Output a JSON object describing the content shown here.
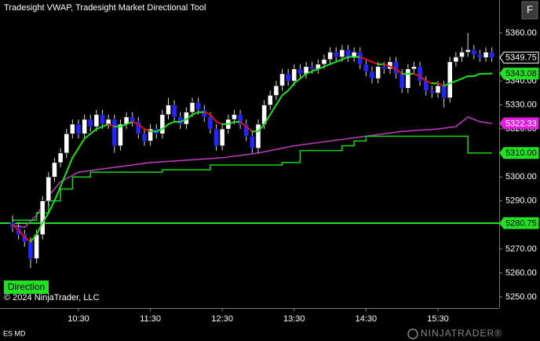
{
  "chart_data": {
    "type": "candlestick",
    "title": "Tradesight VWAP, Tradesight Market Directional Tool",
    "button_label": "F",
    "indicator_box": "Direction",
    "copyright": "© 2024 NinjaTrader, LLC",
    "instrument": "ES MD",
    "brand": "NINJATRADER®",
    "x": [
      575,
      580,
      585,
      590,
      595,
      600,
      605,
      610,
      615,
      620,
      625,
      630,
      635,
      640,
      645,
      650,
      655,
      660,
      665,
      670,
      675,
      680,
      685,
      690,
      695,
      700,
      705,
      710,
      715,
      720,
      725,
      730,
      735,
      740,
      745,
      750,
      755,
      760,
      765,
      770,
      775,
      780,
      785,
      790,
      795,
      800,
      805,
      810,
      815,
      820,
      825,
      830,
      835,
      840,
      845,
      850,
      855,
      860,
      865,
      870,
      875,
      880,
      885,
      890,
      895,
      900,
      905,
      910,
      915,
      920,
      925,
      930,
      935,
      940,
      945,
      950,
      955,
      960,
      965,
      970,
      975
    ],
    "open": [
      5281,
      5279,
      5276,
      5273,
      5266,
      5276,
      5290,
      5300,
      5306,
      5310,
      5318,
      5322,
      5318,
      5324,
      5321,
      5326,
      5322,
      5324,
      5313,
      5322,
      5325,
      5323,
      5318,
      5315,
      5320,
      5318,
      5326,
      5330,
      5325,
      5322,
      5327,
      5331,
      5328,
      5325,
      5320,
      5313,
      5320,
      5324,
      5326,
      5322,
      5317,
      5312,
      5322,
      5330,
      5334,
      5338,
      5343,
      5340,
      5345,
      5343,
      5346,
      5345,
      5347,
      5349,
      5352,
      5350,
      5353,
      5350,
      5352,
      5347,
      5344,
      5341,
      5346,
      5345,
      5348,
      5343,
      5337,
      5345,
      5346,
      5340,
      5336,
      5335,
      5338,
      5333,
      5348,
      5350,
      5352,
      5353,
      5351,
      5349.75,
      5352
    ],
    "high": [
      5284,
      5281,
      5278,
      5275,
      5278,
      5292,
      5302,
      5308,
      5312,
      5320,
      5324,
      5324,
      5326,
      5326,
      5328,
      5328,
      5326,
      5326,
      5324,
      5327,
      5327,
      5325,
      5320,
      5322,
      5322,
      5328,
      5333,
      5332,
      5327,
      5329,
      5333,
      5333,
      5330,
      5327,
      5322,
      5322,
      5326,
      5328,
      5328,
      5324,
      5319,
      5324,
      5332,
      5336,
      5340,
      5345,
      5345,
      5347,
      5347,
      5348,
      5348,
      5349,
      5351,
      5354,
      5354,
      5355,
      5355,
      5354,
      5354,
      5349,
      5346,
      5348,
      5348,
      5350,
      5350,
      5345,
      5347,
      5348,
      5348,
      5342,
      5338,
      5340,
      5340,
      5350,
      5352,
      5354,
      5360,
      5355,
      5353,
      5354,
      5354
    ],
    "low": [
      5277,
      5274,
      5271,
      5262,
      5264,
      5274,
      5288,
      5298,
      5304,
      5308,
      5316,
      5316,
      5316,
      5319,
      5319,
      5320,
      5320,
      5310,
      5311,
      5320,
      5321,
      5316,
      5313,
      5313,
      5316,
      5316,
      5324,
      5323,
      5320,
      5320,
      5325,
      5326,
      5323,
      5318,
      5311,
      5311,
      5318,
      5322,
      5320,
      5315,
      5310,
      5310,
      5320,
      5328,
      5332,
      5336,
      5338,
      5338,
      5341,
      5341,
      5343,
      5343,
      5345,
      5347,
      5348,
      5348,
      5348,
      5348,
      5345,
      5342,
      5339,
      5339,
      5343,
      5343,
      5341,
      5335,
      5335,
      5343,
      5338,
      5334,
      5333,
      5333,
      5329,
      5331,
      5346,
      5348,
      5350,
      5349,
      5348,
      5348,
      5348
    ],
    "close": [
      5279,
      5276,
      5273,
      5266,
      5276,
      5290,
      5300,
      5306,
      5310,
      5318,
      5322,
      5318,
      5324,
      5321,
      5326,
      5322,
      5324,
      5313,
      5322,
      5325,
      5323,
      5318,
      5315,
      5320,
      5318,
      5326,
      5330,
      5325,
      5322,
      5327,
      5331,
      5328,
      5325,
      5320,
      5313,
      5320,
      5324,
      5326,
      5322,
      5317,
      5312,
      5322,
      5330,
      5334,
      5338,
      5343,
      5340,
      5345,
      5343,
      5346,
      5345,
      5347,
      5349,
      5352,
      5350,
      5353,
      5350,
      5352,
      5347,
      5344,
      5341,
      5346,
      5345,
      5348,
      5343,
      5337,
      5345,
      5346,
      5340,
      5336,
      5335,
      5338,
      5333,
      5348,
      5350,
      5352,
      5353,
      5351,
      5349.75,
      5352,
      5349.75
    ],
    "up_color": "#ffffff",
    "down_color": "#2424ff",
    "wick_color": "#d8d8d8",
    "vwap": {
      "values": [
        5280,
        5278,
        5275,
        5273,
        5276,
        5281,
        5285,
        5290,
        5296,
        5302,
        5308,
        5312,
        5316,
        5318,
        5320,
        5321,
        5322,
        5321,
        5321,
        5322,
        5323,
        5322,
        5320,
        5319,
        5319,
        5320,
        5322,
        5323,
        5323,
        5324,
        5326,
        5327,
        5327,
        5326,
        5323,
        5322,
        5322,
        5323,
        5323,
        5321,
        5319,
        5319,
        5322,
        5326,
        5330,
        5334,
        5336,
        5339,
        5341,
        5343,
        5344,
        5345,
        5346,
        5347,
        5348,
        5349,
        5350,
        5350,
        5350,
        5349,
        5348,
        5347,
        5347,
        5346,
        5345,
        5343,
        5343,
        5343,
        5342,
        5340,
        5339,
        5339,
        5338,
        5339,
        5340,
        5341,
        5342,
        5342,
        5343,
        5343,
        5343.08
      ],
      "rising_color": "#1ee01e",
      "falling_color": "#e01010"
    },
    "lines": [
      {
        "x": [
          575,
          585,
          595,
          605,
          615,
          630,
          660,
          690,
          720,
          750,
          780,
          810,
          840,
          870,
          900,
          930,
          945,
          955,
          965,
          975
        ],
        "values": [
          5280,
          5279,
          5284,
          5292,
          5298,
          5302,
          5304,
          5306,
          5307,
          5308,
          5310,
          5313,
          5315,
          5317,
          5319,
          5320,
          5321,
          5325,
          5323,
          5322.33
        ],
        "color": "#c23ac2",
        "step": false
      },
      {
        "x": [
          575,
          595,
          605,
          615,
          625,
          640,
          700,
          740,
          800,
          815,
          850,
          860,
          870,
          945,
          955,
          975
        ],
        "values": [
          5282,
          5285,
          5290,
          5295,
          5300,
          5302,
          5303,
          5305,
          5306,
          5311,
          5313,
          5315,
          5317,
          5317,
          5310,
          5310
        ],
        "color": "#12d812",
        "step": true
      }
    ],
    "level": {
      "value": 5280.75,
      "color": "#22e022"
    },
    "price_markers": [
      5349.75,
      5343.08,
      5322.33,
      {
        "value": 5310,
        "label": "5310.00"
      },
      5280.75
    ],
    "price_marker_colors": [
      "#000000",
      "#22e022",
      "#e020e0",
      "#22e022",
      "#22e022"
    ],
    "price_marker_text_colors": [
      "#ffffff",
      "#000000",
      "#ffffff",
      "#000000",
      "#000000"
    ],
    "xlim": [
      564.5,
      981.1
    ],
    "xticks": [
      {
        "value": 630,
        "label": "10:30"
      },
      {
        "value": 690,
        "label": "11:30"
      },
      {
        "value": 750,
        "label": "12:30"
      },
      {
        "value": 810,
        "label": "13:30"
      },
      {
        "value": 870,
        "label": "14:30"
      },
      {
        "value": 930,
        "label": "15:30"
      }
    ],
    "ylim": [
      5245.4,
      5373.75
    ],
    "yticks": [
      {
        "value": 5250,
        "label": "5250.00"
      },
      {
        "value": 5260,
        "label": "5260.00"
      },
      {
        "value": 5270,
        "label": "5270.00"
      },
      {
        "value": 5280,
        "label": "5280.00"
      },
      {
        "value": 5290,
        "label": "5290.00"
      },
      {
        "value": 5300,
        "label": "5300.00"
      },
      {
        "value": 5310,
        "label": "5310.00"
      },
      {
        "value": 5320,
        "label": "5320.00"
      },
      {
        "value": 5330,
        "label": "5330.00"
      },
      {
        "value": 5340,
        "label": "5340.00"
      },
      {
        "value": 5350,
        "label": "5350.00"
      },
      {
        "value": 5360,
        "label": "5360.00"
      }
    ]
  }
}
